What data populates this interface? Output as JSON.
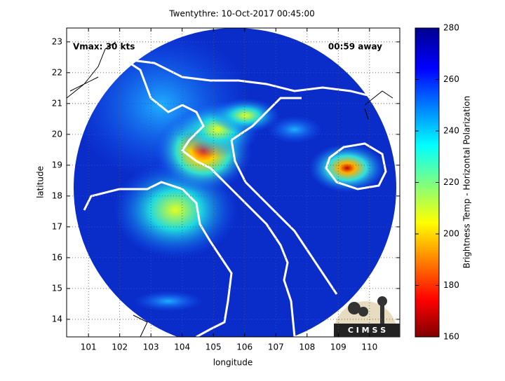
{
  "chart_data": {
    "type": "map",
    "title": "Twentythre: 10-Oct-2017 00:45:00",
    "xlabel": "longitude",
    "ylabel": "latitude",
    "xlim": [
      100.3,
      110.97
    ],
    "ylim": [
      13.43,
      23.45
    ],
    "xticks": [
      101,
      102,
      103,
      104,
      105,
      106,
      107,
      108,
      109,
      110
    ],
    "yticks": [
      14,
      15,
      16,
      17,
      18,
      19,
      20,
      21,
      22,
      23
    ],
    "grid": true,
    "annotations": [
      "Vmax: 30 kts",
      "00:59 away"
    ],
    "logo": "C I M S S",
    "colorbar": {
      "label": "Brightness Temp - Horizontal Polarization",
      "lim": [
        160,
        280
      ],
      "ticks": [
        160,
        180,
        200,
        220,
        240,
        260,
        280
      ]
    }
  }
}
